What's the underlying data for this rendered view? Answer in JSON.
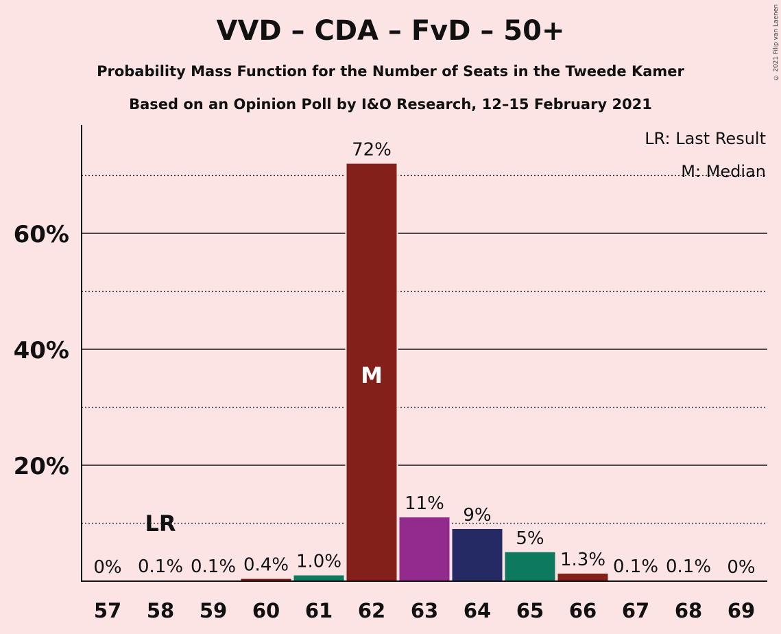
{
  "title": "VVD – CDA – FvD – 50+",
  "subtitle1": "Probability Mass Function for the Number of Seats in the Tweede Kamer",
  "subtitle2": "Based on an Opinion Poll by I&O Research, 12–15 February 2021",
  "copyright": "© 2021 Filip van Laenen",
  "legend": {
    "lr": "LR: Last Result",
    "m": "M: Median"
  },
  "chart_data": {
    "type": "bar",
    "categories": [
      "57",
      "58",
      "59",
      "60",
      "61",
      "62",
      "63",
      "64",
      "65",
      "66",
      "67",
      "68",
      "69"
    ],
    "values": [
      0,
      0.1,
      0.1,
      0.4,
      1.0,
      72,
      11,
      9,
      5,
      1.3,
      0.1,
      0.1,
      0
    ],
    "labels": [
      "0%",
      "0.1%",
      "0.1%",
      "0.4%",
      "1.0%",
      "72%",
      "11%",
      "9%",
      "5%",
      "1.3%",
      "0.1%",
      "0.1%",
      "0%"
    ],
    "colors": [
      "#832019",
      "#832019",
      "#832019",
      "#832019",
      "#0d7a5f",
      "#832019",
      "#922b8c",
      "#262a64",
      "#0d7a5f",
      "#832019",
      "#832019",
      "#832019",
      "#832019"
    ],
    "ylim": [
      0,
      78
    ],
    "yticks": [
      20,
      40,
      60
    ],
    "ytick_labels": [
      "20%",
      "40%",
      "60%"
    ],
    "minor_gridlines": [
      10,
      30,
      50,
      70
    ],
    "last_result": {
      "category": "58",
      "label": "LR"
    },
    "median": {
      "category": "62",
      "label": "M"
    },
    "legend_position": "top-right",
    "grid": true
  }
}
